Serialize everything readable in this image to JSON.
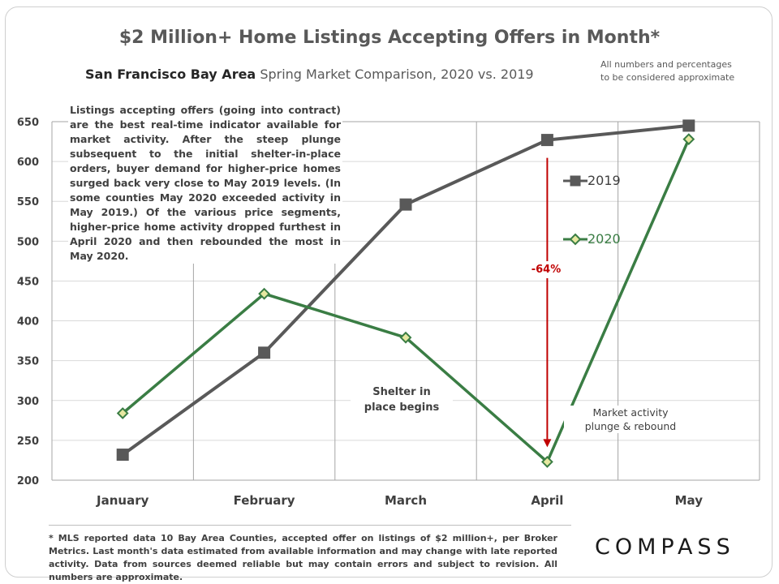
{
  "header": {
    "title": "$2 Million+ Home Listings Accepting Offers in Month*",
    "subtitle_region": "San Francisco Bay Area",
    "subtitle_rest": "Spring Market Comparison, 2020 vs. 2019",
    "approx_note_line1": "All numbers and percentages",
    "approx_note_line2": "to be considered approximate"
  },
  "annotations": {
    "description": "Listings accepting offers (going into contract) are the best real-time indicator available for market activity. After the steep plunge subsequent to the initial shelter-in-place orders, buyer demand for higher-price homes surged back very close to May 2019 levels. (In some counties May 2020 exceeded activity in May 2019.) Of the various price segments, higher-price home activity dropped furthest in April 2020 and then rebounded the most in May 2020.",
    "shelter_line1": "Shelter in",
    "shelter_line2": "place begins",
    "market_line1": "Market activity",
    "market_line2": "plunge & rebound",
    "pct_change": "-64%"
  },
  "colors": {
    "series_2019": "#595959",
    "series_2020": "#3a7d44",
    "arrow": "#c00000",
    "grid": "#a6a6a6"
  },
  "chart_data": {
    "type": "line",
    "title": "$2 Million+ Home Listings Accepting Offers in Month*",
    "categories": [
      "January",
      "February",
      "March",
      "April",
      "May"
    ],
    "ylim": [
      200,
      650
    ],
    "yticks": [
      200,
      250,
      300,
      350,
      400,
      450,
      500,
      550,
      600,
      650
    ],
    "grid": "vertical and horizontal",
    "legend_position": "right",
    "series": [
      {
        "name": "2019",
        "values": [
          232,
          360,
          546,
          627,
          645
        ],
        "marker": "square"
      },
      {
        "name": "2020",
        "values": [
          284,
          434,
          379,
          223,
          628
        ],
        "marker": "diamond"
      }
    ]
  },
  "footer": {
    "footnote": "* MLS reported data 10 Bay Area Counties, accepted offer on listings of $2 million+, per Broker Metrics. Last month's data estimated from available information and may change with late reported activity. Data from sources deemed reliable but may contain errors and subject to revision. All numbers are approximate.",
    "logo": "COMPASS"
  }
}
